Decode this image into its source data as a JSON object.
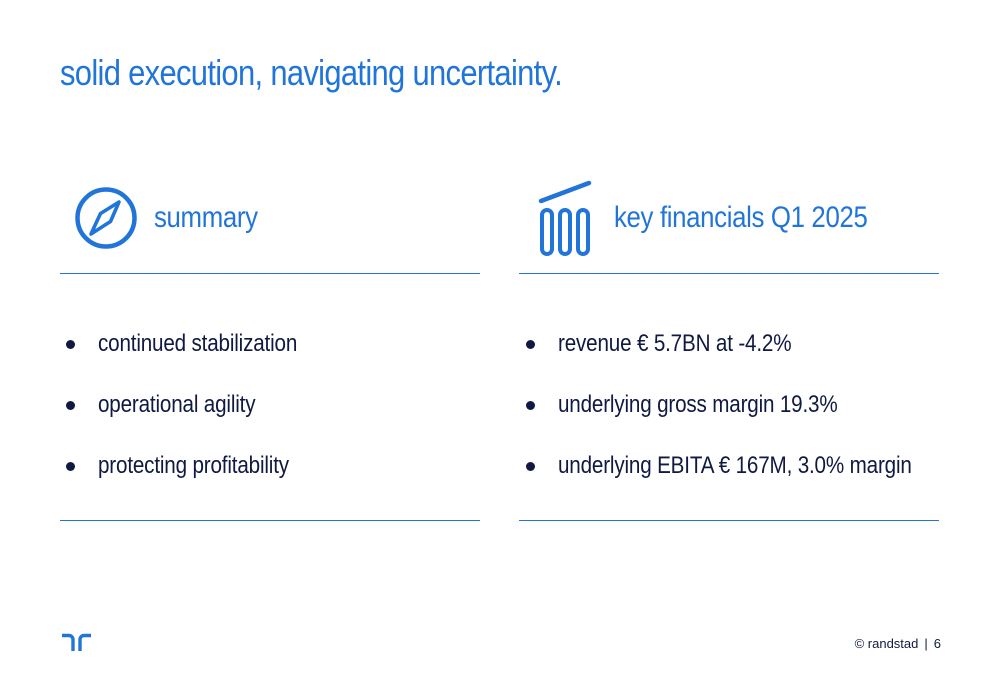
{
  "title": "solid execution, navigating uncertainty.",
  "summary": {
    "heading": "summary",
    "icon": "compass-icon",
    "items": [
      "continued stabilization",
      "operational agility",
      "protecting profitability"
    ]
  },
  "financials": {
    "heading": "key financials Q1 2025",
    "icon": "bar-chart-growth-icon",
    "items": [
      "revenue € 5.7BN at -4.2%",
      "underlying gross margin 19.3%",
      "underlying EBITA € 167M, 3.0% margin"
    ]
  },
  "footer": {
    "copyright": "© randstad",
    "separator": "|",
    "page_number": "6"
  },
  "colors": {
    "accent": "#2175d9",
    "text": "#0f1941",
    "background": "#ffffff"
  }
}
